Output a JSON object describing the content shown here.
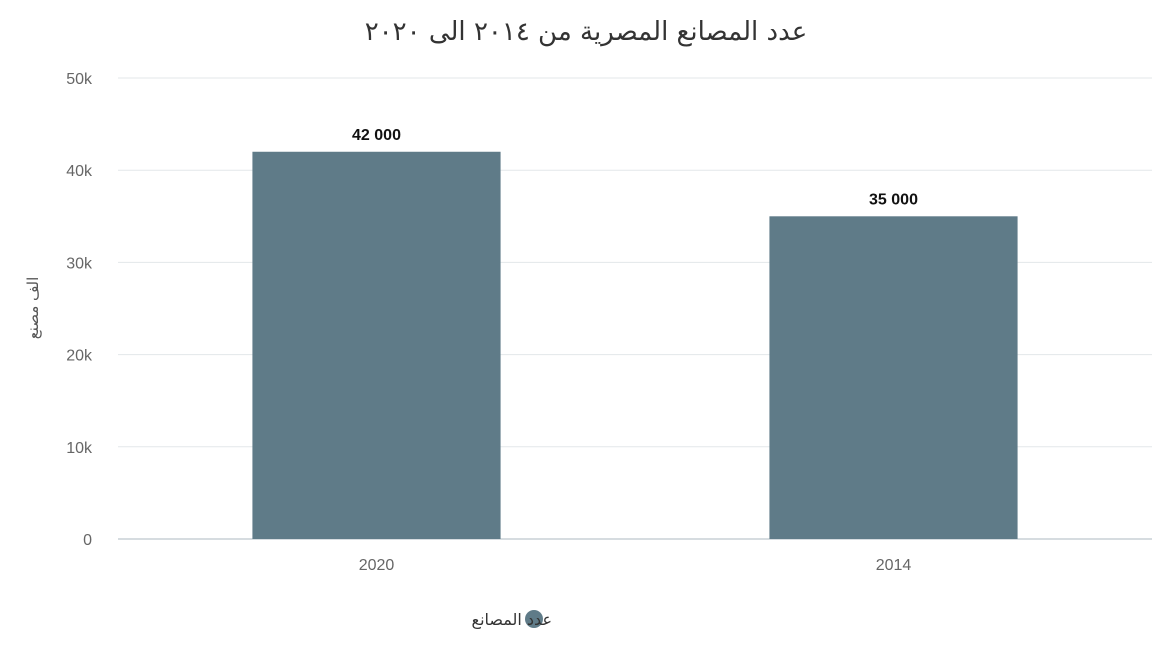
{
  "chart_data": {
    "type": "bar",
    "title": "عدد المصانع المصرية من ٢٠١٤ الى ٢٠٢٠",
    "xlabel": "",
    "ylabel": "الف مصنع",
    "ylim": [
      0,
      50000
    ],
    "yticks": [
      {
        "value": 0,
        "label": "0"
      },
      {
        "value": 10000,
        "label": "10k"
      },
      {
        "value": 20000,
        "label": "20k"
      },
      {
        "value": 30000,
        "label": "30k"
      },
      {
        "value": 40000,
        "label": "40k"
      },
      {
        "value": 50000,
        "label": "50k"
      }
    ],
    "categories": [
      "2020",
      "2014"
    ],
    "series": [
      {
        "name": "عدد المصانع",
        "color": "#5f7b88",
        "values": [
          42000,
          35000
        ],
        "data_labels": [
          "42 000",
          "35 000"
        ]
      }
    ],
    "grid": true,
    "legend_position": "bottom"
  }
}
